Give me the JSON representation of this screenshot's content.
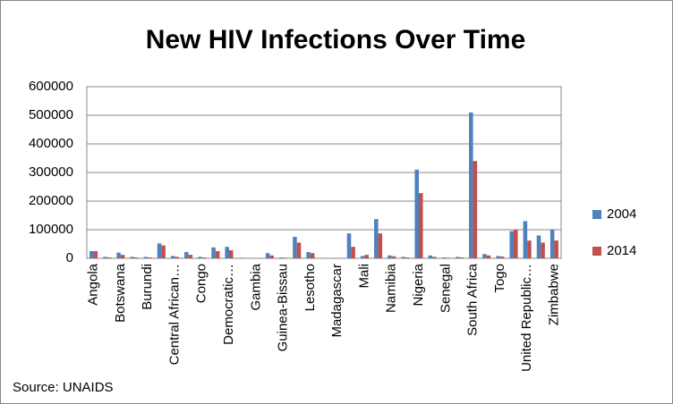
{
  "chart_data": {
    "type": "bar",
    "title": "New HIV Infections Over Time",
    "categories": [
      "Angola",
      null,
      "Botswana",
      null,
      "Burundi",
      null,
      "Central African…",
      null,
      "Congo",
      null,
      "Democratic…",
      null,
      "Gambia",
      null,
      "Guinea-Bissau",
      null,
      "Lesotho",
      null,
      "Madagascar",
      null,
      "Mali",
      null,
      "Namibia",
      null,
      "Nigeria",
      null,
      "Senegal",
      null,
      "South Africa",
      null,
      "Togo",
      null,
      "United Republic…",
      null,
      "Zimbabwe"
    ],
    "series": [
      {
        "name": "2004",
        "color": "#4f81bd",
        "values": [
          25000,
          5000,
          20000,
          5000,
          5000,
          52000,
          8000,
          22000,
          5000,
          38000,
          40000,
          2000,
          1000,
          18000,
          3000,
          75000,
          22000,
          1000,
          1000,
          87000,
          8000,
          137000,
          10000,
          5000,
          310000,
          10000,
          3000,
          5000,
          510000,
          15000,
          8000,
          95000,
          130000,
          80000,
          100000
        ]
      },
      {
        "name": "2014",
        "color": "#c0504d",
        "values": [
          25000,
          3000,
          12000,
          3000,
          3000,
          45000,
          5000,
          12000,
          3000,
          25000,
          28000,
          1000,
          500,
          10000,
          2000,
          55000,
          18000,
          500,
          500,
          40000,
          12000,
          87000,
          7000,
          3000,
          228000,
          5000,
          2000,
          3000,
          340000,
          10000,
          6000,
          100000,
          62000,
          55000,
          62000
        ]
      }
    ],
    "ylim": [
      0,
      600000
    ],
    "yticks": [
      0,
      100000,
      200000,
      300000,
      400000,
      500000,
      600000
    ],
    "grid": true,
    "legend": "right",
    "source": "Source: UNAIDS"
  }
}
